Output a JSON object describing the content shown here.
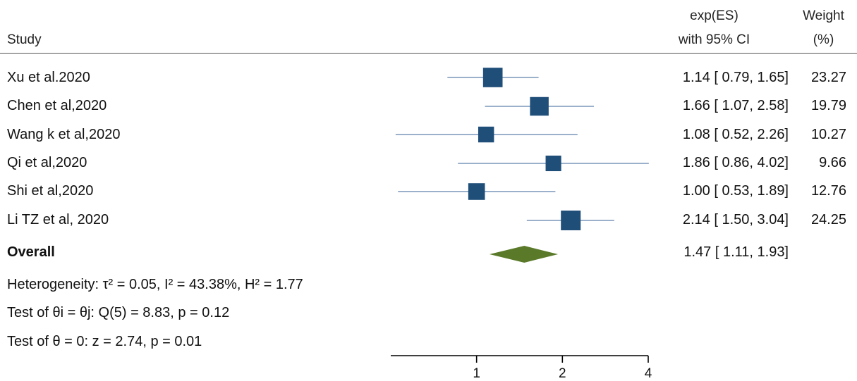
{
  "header": {
    "study": "Study",
    "effect_line1": "exp(ES)",
    "effect_line2": "with 95% CI",
    "weight_line1": "Weight",
    "weight_line2": "(%)"
  },
  "rows": [
    {
      "study": "Xu et al.2020",
      "ci_text": "1.14 [ 0.79,  1.65]",
      "weight": "23.27"
    },
    {
      "study": "Chen et al,2020",
      "ci_text": "1.66 [ 1.07,  2.58]",
      "weight": "19.79"
    },
    {
      "study": "Wang k et al,2020",
      "ci_text": "1.08 [ 0.52,  2.26]",
      "weight": "10.27"
    },
    {
      "study": "Qi et al,2020",
      "ci_text": "1.86 [ 0.86,  4.02]",
      "weight": "9.66"
    },
    {
      "study": "Shi et al,2020",
      "ci_text": "1.00 [ 0.53,  1.89]",
      "weight": "12.76"
    },
    {
      "study": "Li TZ et al, 2020",
      "ci_text": "2.14 [ 1.50,  3.04]",
      "weight": "24.25"
    }
  ],
  "overall": {
    "label": "Overall",
    "ci_text": "1.47 [ 1.11,  1.93]"
  },
  "notes": {
    "heterogeneity": "Heterogeneity: τ² = 0.05, I² = 43.38%, H² = 1.77",
    "test_groups": "Test of θi = θj: Q(5) = 8.83, p = 0.12",
    "test_zero": "Test of θ = 0: z = 2.74, p = 0.01"
  },
  "colors": {
    "box": "#1f4e79",
    "ci_line": "#7a96b8",
    "diamond": "#5a7a2a",
    "axis": "#000000"
  },
  "chart_data": {
    "type": "forest",
    "x_scale": "log",
    "xlim": [
      0.5,
      4
    ],
    "x_ticks": [
      1,
      2,
      4
    ],
    "studies": [
      {
        "name": "Xu et al.2020",
        "estimate": 1.14,
        "lower": 0.79,
        "upper": 1.65,
        "weight": 23.27
      },
      {
        "name": "Chen et al,2020",
        "estimate": 1.66,
        "lower": 1.07,
        "upper": 2.58,
        "weight": 19.79
      },
      {
        "name": "Wang k et al,2020",
        "estimate": 1.08,
        "lower": 0.52,
        "upper": 2.26,
        "weight": 10.27
      },
      {
        "name": "Qi et al,2020",
        "estimate": 1.86,
        "lower": 0.86,
        "upper": 4.02,
        "weight": 9.66
      },
      {
        "name": "Shi et al,2020",
        "estimate": 1.0,
        "lower": 0.53,
        "upper": 1.89,
        "weight": 12.76
      },
      {
        "name": "Li TZ et al, 2020",
        "estimate": 2.14,
        "lower": 1.5,
        "upper": 3.04,
        "weight": 24.25
      }
    ],
    "overall": {
      "name": "Overall",
      "estimate": 1.47,
      "lower": 1.11,
      "upper": 1.93
    }
  }
}
